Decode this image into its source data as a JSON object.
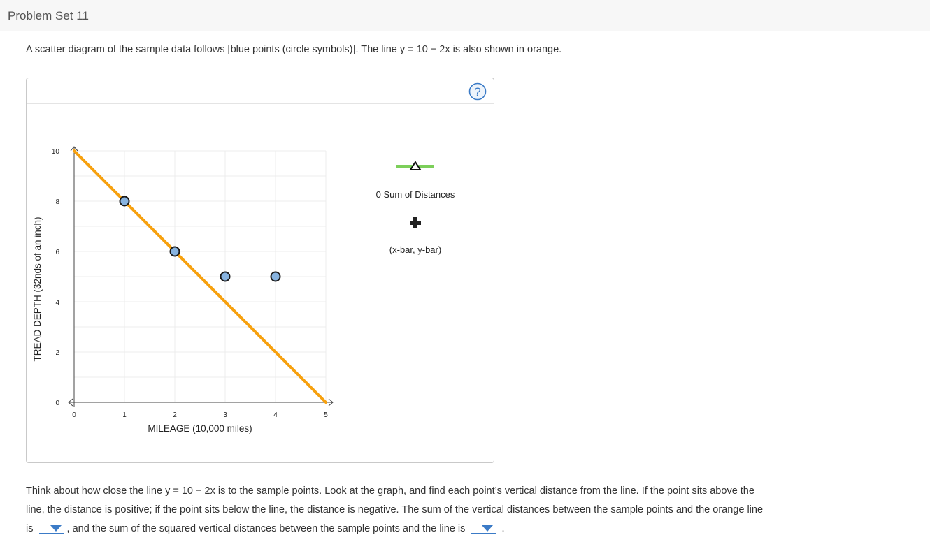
{
  "header": {
    "title": "Problem Set 11"
  },
  "intro": {
    "text": "A scatter diagram of the sample data follows [blue points (circle symbols)]. The line y = 10 − 2x is also shown in orange."
  },
  "help": {
    "icon": "question-mark-icon"
  },
  "legend": {
    "sum_label": "0 Sum of Distances",
    "mean_label": "(x-bar, y-bar)"
  },
  "colors": {
    "line": "#f7a10f",
    "points": "#87b3e0",
    "point_stroke": "#1a1a1a",
    "legend_bar": "#7ccf5a",
    "accent": "#3b7bc7"
  },
  "chart_data": {
    "type": "scatter",
    "xlabel": "MILEAGE (10,000 miles)",
    "ylabel": "TREAD DEPTH (32nds of an inch)",
    "xlim": [
      0,
      5
    ],
    "ylim": [
      0,
      10
    ],
    "x_ticks": [
      "0",
      "1",
      "2",
      "3",
      "4",
      "5"
    ],
    "y_ticks": [
      "0",
      "2",
      "4",
      "6",
      "8",
      "10"
    ],
    "grid": true,
    "points": [
      {
        "x": 1,
        "y": 8
      },
      {
        "x": 2,
        "y": 6
      },
      {
        "x": 3,
        "y": 5
      },
      {
        "x": 4,
        "y": 5
      }
    ],
    "line": {
      "intercept": 10,
      "slope": -2,
      "label": "y = 10 − 2x"
    }
  },
  "question": {
    "part1": "Think about how close the line y = 10 − 2x is to the sample points. Look at the graph, and find each point’s vertical distance from the line. If the point sits above the line, the distance is positive; if the point sits below the line, the distance is negative. The sum of the vertical distances between the sample points and the orange line is",
    "part2": ", and the sum of the squared vertical distances between the sample points and the line is",
    "part3": "."
  }
}
